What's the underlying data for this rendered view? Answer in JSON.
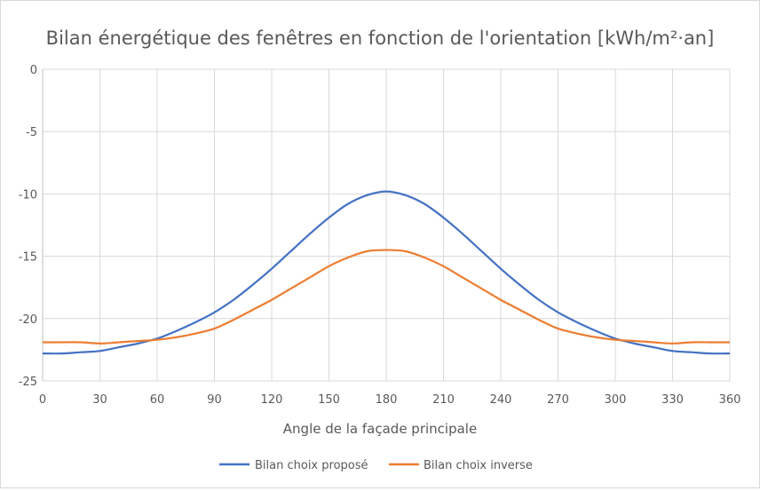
{
  "chart_data": {
    "type": "line",
    "title": "Bilan énergétique des fenêtres en fonction de l'orientation [kWh/m²·an]",
    "xlabel": "Angle de la façade principale",
    "ylabel": "",
    "xlim": [
      0,
      360
    ],
    "ylim": [
      -25,
      0
    ],
    "x_ticks": [
      0,
      30,
      60,
      90,
      120,
      150,
      180,
      210,
      240,
      270,
      300,
      330,
      360
    ],
    "y_ticks": [
      0,
      -5,
      -10,
      -15,
      -20,
      -25
    ],
    "grid": true,
    "legend_position": "bottom",
    "x": [
      0,
      10,
      20,
      30,
      40,
      50,
      60,
      70,
      80,
      90,
      100,
      110,
      120,
      130,
      140,
      150,
      160,
      170,
      180,
      190,
      200,
      210,
      220,
      230,
      240,
      250,
      260,
      270,
      280,
      290,
      300,
      310,
      320,
      330,
      340,
      350,
      360
    ],
    "series": [
      {
        "name": "Bilan choix proposé",
        "color": "#4472c4",
        "values": [
          -22.8,
          -22.8,
          -22.7,
          -22.6,
          -22.3,
          -22.0,
          -21.6,
          -21.0,
          -20.3,
          -19.5,
          -18.5,
          -17.3,
          -16.0,
          -14.6,
          -13.2,
          -11.9,
          -10.8,
          -10.1,
          -9.8,
          -10.1,
          -10.8,
          -11.9,
          -13.2,
          -14.6,
          -16.0,
          -17.3,
          -18.5,
          -19.5,
          -20.3,
          -21.0,
          -21.6,
          -22.0,
          -22.3,
          -22.6,
          -22.7,
          -22.8,
          -22.8
        ]
      },
      {
        "name": "Bilan choix inverse",
        "color": "#ed7d31",
        "values": [
          -21.9,
          -21.9,
          -21.9,
          -22.0,
          -21.9,
          -21.8,
          -21.7,
          -21.5,
          -21.2,
          -20.8,
          -20.1,
          -19.3,
          -18.5,
          -17.6,
          -16.7,
          -15.8,
          -15.1,
          -14.6,
          -14.5,
          -14.6,
          -15.1,
          -15.8,
          -16.7,
          -17.6,
          -18.5,
          -19.3,
          -20.1,
          -20.8,
          -21.2,
          -21.5,
          -21.7,
          -21.8,
          -21.9,
          -22.0,
          -21.9,
          -21.9,
          -21.9
        ]
      }
    ]
  }
}
